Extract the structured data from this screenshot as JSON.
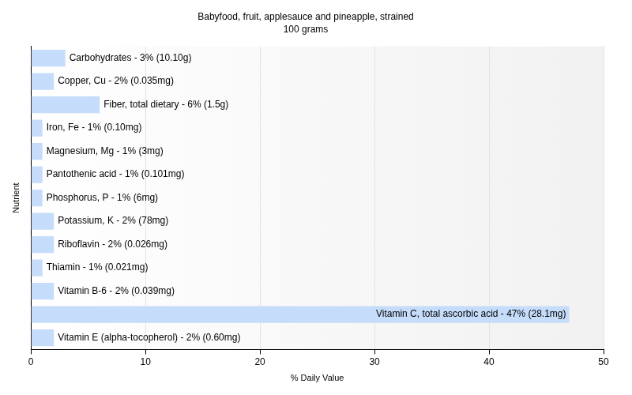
{
  "chart_data": {
    "type": "bar",
    "orientation": "horizontal",
    "title": "Babyfood, fruit, applesauce and pineapple, strained",
    "subtitle": "100 grams",
    "x_label": "% Daily Value",
    "y_label": "Nutrient",
    "categories": [
      null,
      null,
      null,
      null,
      null,
      null,
      null,
      null,
      null,
      null,
      null,
      null,
      null
    ],
    "values": [
      3,
      2,
      6,
      1,
      1,
      1,
      1,
      2,
      2,
      1,
      2,
      47,
      2
    ],
    "value_labels": [
      "Carbohydrates - 3% (10.10g)",
      "Copper, Cu - 2% (0.035mg)",
      "Fiber, total dietary - 6% (1.5g)",
      "Iron, Fe - 1% (0.10mg)",
      "Magnesium, Mg - 1% (3mg)",
      "Pantothenic acid - 1% (0.101mg)",
      "Phosphorus, P - 1% (6mg)",
      "Potassium, K - 2% (78mg)",
      "Riboflavin - 2% (0.026mg)",
      "Thiamin - 1% (0.021mg)",
      "Vitamin B-6 - 2% (0.039mg)",
      "Vitamin C, total ascorbic acid - 47% (28.1mg)",
      "Vitamin E (alpha-tocopherol) - 2% (0.60mg)"
    ],
    "data_labels": true,
    "color": "#c6dcfb",
    "xlim": [
      0,
      50
    ],
    "xticks": [
      0,
      10,
      20,
      30,
      40,
      50
    ],
    "grid": true,
    "tick_labels": "x"
  }
}
